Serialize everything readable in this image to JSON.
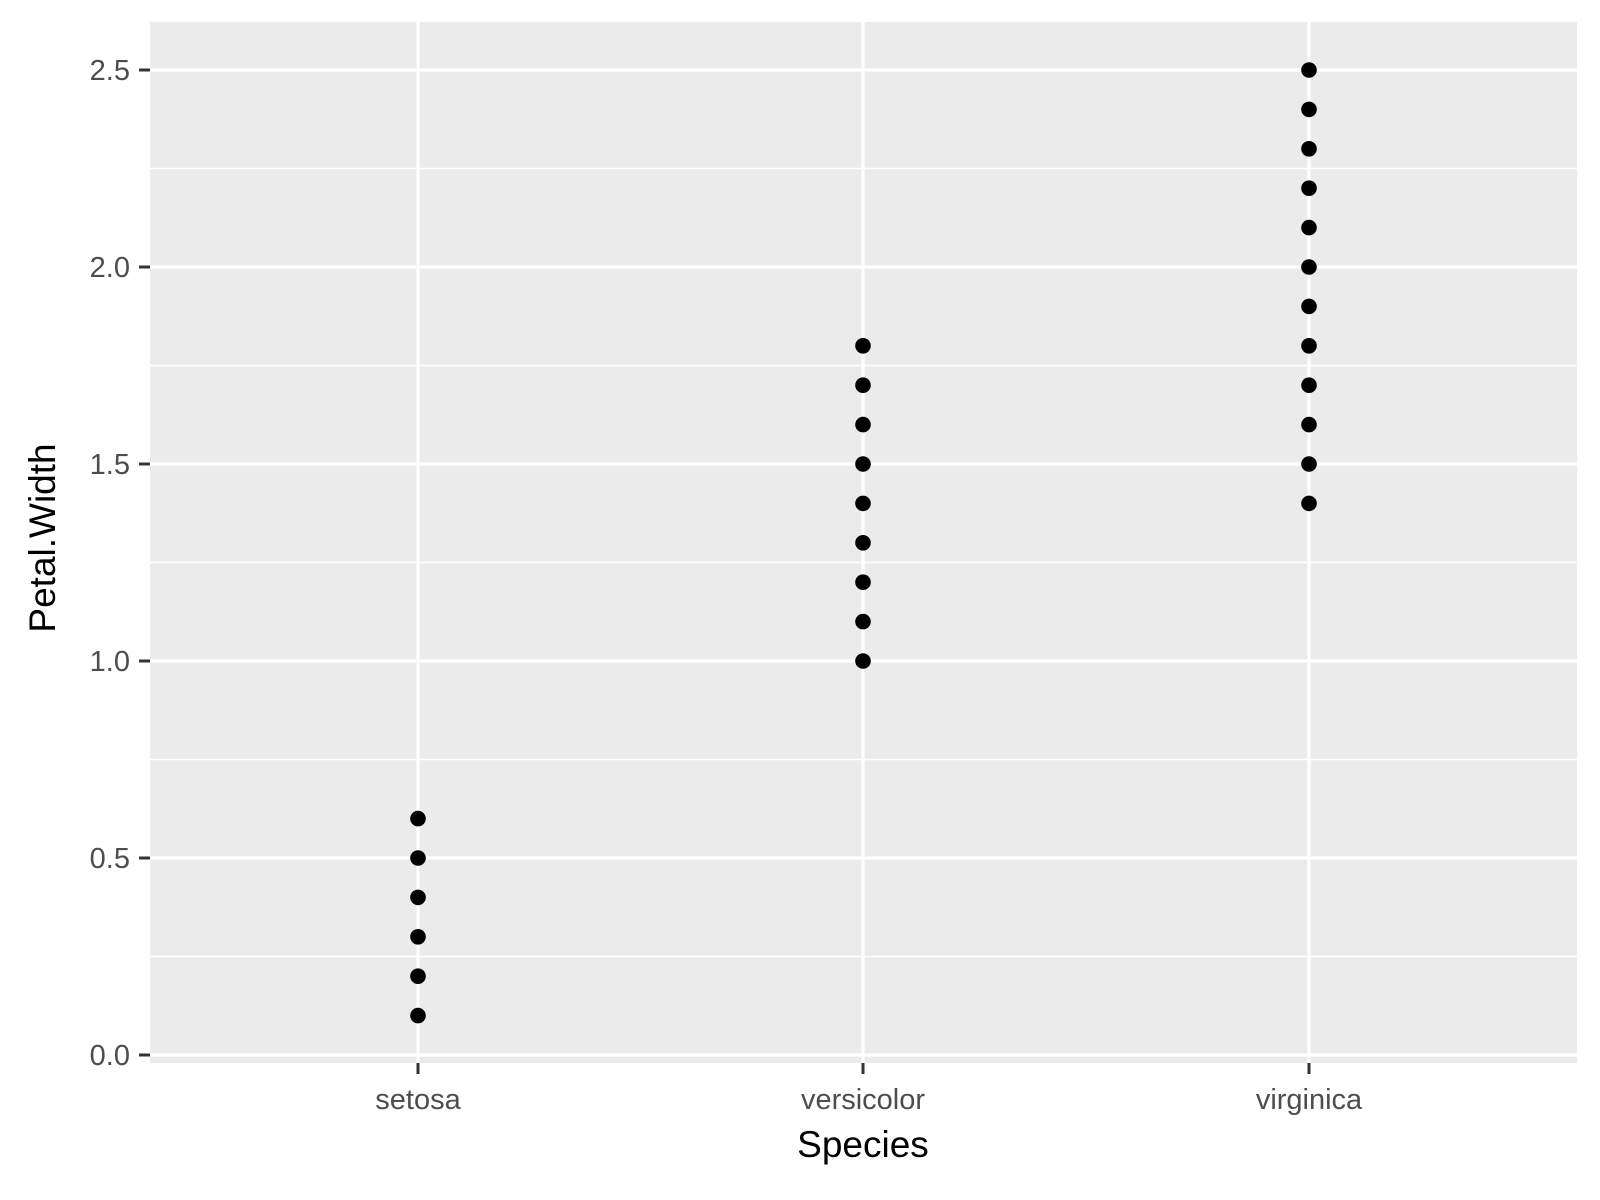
{
  "chart_data": {
    "type": "scatter",
    "title": "",
    "xlabel": "Species",
    "ylabel": "Petal.Width",
    "categories": [
      "setosa",
      "versicolor",
      "virginica"
    ],
    "series": [
      {
        "name": "setosa",
        "x": "setosa",
        "values": [
          0.1,
          0.2,
          0.3,
          0.4,
          0.5,
          0.6
        ]
      },
      {
        "name": "versicolor",
        "x": "versicolor",
        "values": [
          1.0,
          1.1,
          1.2,
          1.3,
          1.4,
          1.5,
          1.6,
          1.7,
          1.8
        ]
      },
      {
        "name": "virginica",
        "x": "virginica",
        "values": [
          1.4,
          1.5,
          1.6,
          1.7,
          1.8,
          1.9,
          2.0,
          2.1,
          2.2,
          2.3,
          2.4,
          2.5
        ]
      }
    ],
    "yticks": [
      "0.0",
      "0.5",
      "1.0",
      "1.5",
      "2.0",
      "2.5"
    ],
    "ylim": [
      -0.025,
      2.62
    ],
    "grid": true,
    "legend": "none",
    "colors": {
      "panel_background": "#ebebeb",
      "grid": "#ffffff",
      "point": "#000000",
      "tick_text": "#4d4d4d",
      "tick_mark": "#333333"
    }
  }
}
